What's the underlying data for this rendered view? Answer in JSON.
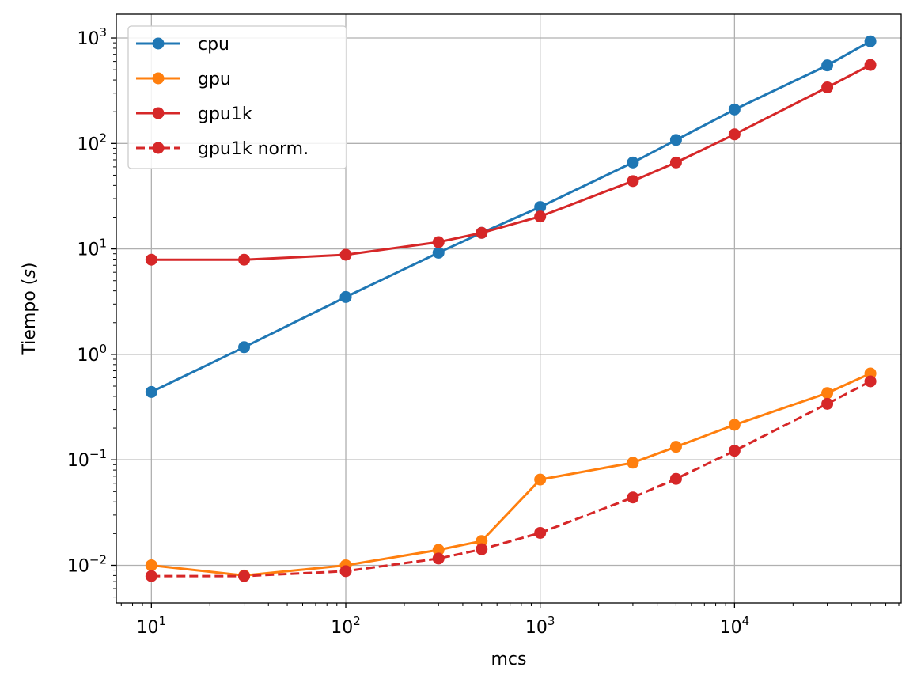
{
  "chart_data": {
    "type": "line",
    "title": "",
    "xlabel": "mcs",
    "ylabel": "Tiempo (s)",
    "xscale": "log",
    "yscale": "log",
    "xlim": [
      6.6,
      72000
    ],
    "ylim": [
      0.0044,
      1680
    ],
    "grid": true,
    "legend_position": "top-left",
    "x_ticks": [
      {
        "base": "10",
        "exp": "1"
      },
      {
        "base": "10",
        "exp": "2"
      },
      {
        "base": "10",
        "exp": "3"
      },
      {
        "base": "10",
        "exp": "4"
      }
    ],
    "y_ticks": [
      {
        "base": "10",
        "exp": "−2"
      },
      {
        "base": "10",
        "exp": "−1"
      },
      {
        "base": "10",
        "exp": "0"
      },
      {
        "base": "10",
        "exp": "1"
      },
      {
        "base": "10",
        "exp": "2"
      },
      {
        "base": "10",
        "exp": "3"
      }
    ],
    "series": [
      {
        "name": "cpu",
        "color": "#1f77b4",
        "linestyle": "solid",
        "x": [
          10,
          30,
          100,
          300,
          500,
          1000,
          3000,
          5000,
          10000,
          30000,
          50000
        ],
        "y": [
          0.44,
          1.17,
          3.5,
          9.2,
          14.2,
          25,
          66,
          108,
          210,
          550,
          930
        ]
      },
      {
        "name": "gpu",
        "color": "#ff7f0e",
        "linestyle": "solid",
        "x": [
          10,
          30,
          100,
          300,
          500,
          1000,
          3000,
          5000,
          10000,
          30000,
          50000
        ],
        "y": [
          0.01,
          0.008,
          0.01,
          0.014,
          0.017,
          0.065,
          0.094,
          0.133,
          0.215,
          0.43,
          0.66
        ]
      },
      {
        "name": "gpu1k",
        "color": "#d62728",
        "linestyle": "solid",
        "x": [
          10,
          30,
          100,
          300,
          500,
          1000,
          3000,
          5000,
          10000,
          30000,
          50000
        ],
        "y": [
          7.9,
          7.9,
          8.8,
          11.6,
          14.2,
          20.3,
          44,
          66,
          122,
          340,
          555
        ]
      },
      {
        "name": "gpu1k norm.",
        "color": "#d62728",
        "linestyle": "dashed",
        "x": [
          10,
          30,
          100,
          300,
          500,
          1000,
          3000,
          5000,
          10000,
          30000,
          50000
        ],
        "y": [
          0.0079,
          0.0079,
          0.0088,
          0.0116,
          0.0142,
          0.0203,
          0.044,
          0.066,
          0.122,
          0.34,
          0.555
        ]
      }
    ]
  }
}
